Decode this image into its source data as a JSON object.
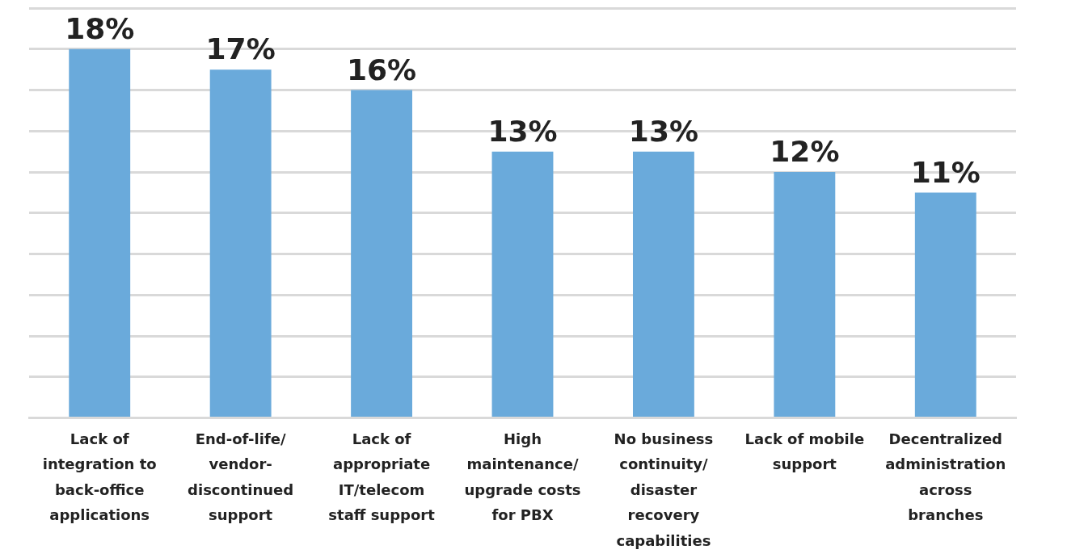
{
  "chart_data": {
    "type": "bar",
    "categories": [
      "Lack of integration to back-office applications",
      "End-of-life/ vendor-discontinued support",
      "Lack of appropriate IT/telecom staff support",
      "High maintenance/ upgrade costs for PBX",
      "No business continuity/ disaster recovery capabilities",
      "Lack of mobile support",
      "Decentralized administration across branches"
    ],
    "values": [
      18,
      17,
      16,
      13,
      13,
      12,
      11
    ],
    "value_labels": [
      "18%",
      "17%",
      "16%",
      "13%",
      "13%",
      "12%",
      "11%"
    ],
    "color": "#6aaadb",
    "ylim": [
      0,
      20
    ],
    "yticks": [
      {
        "value": 0,
        "label": null
      },
      {
        "value": 2,
        "label": null
      },
      {
        "value": 4,
        "label": null
      },
      {
        "value": 6,
        "label": null
      },
      {
        "value": 8,
        "label": null
      },
      {
        "value": 10,
        "label": null
      },
      {
        "value": 12,
        "label": null
      },
      {
        "value": 14,
        "label": null
      },
      {
        "value": 16,
        "label": null
      },
      {
        "value": 18,
        "label": null
      },
      {
        "value": 20,
        "label": null
      }
    ],
    "grid": "y",
    "tick_labels": "x"
  }
}
